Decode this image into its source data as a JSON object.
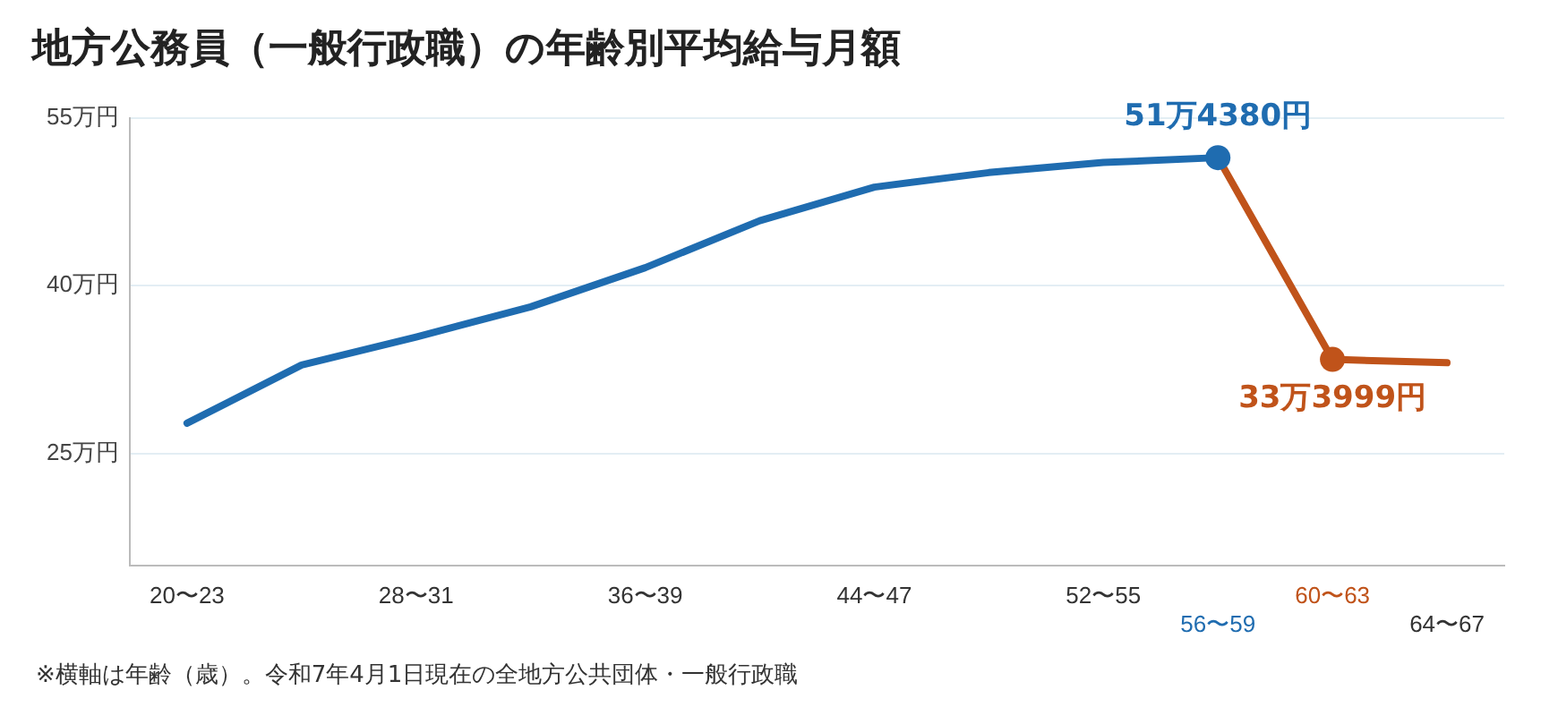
{
  "chart_data": {
    "type": "line",
    "title": "地方公務員（一般行政職）の年齢別平均給与月額",
    "categories": [
      "20〜23",
      null,
      "28〜31",
      null,
      "36〜39",
      null,
      "44〜47",
      null,
      "52〜55",
      "56〜59",
      "60〜63",
      "64〜67"
    ],
    "series": [
      {
        "color": "#1f6cb0",
        "values": [
          27.7,
          32.9,
          35.4,
          38.1,
          41.6,
          45.8,
          48.8,
          50.1,
          51.0,
          51.438,
          null,
          null
        ]
      },
      {
        "color": "#c0531a",
        "values": [
          null,
          null,
          null,
          null,
          null,
          null,
          null,
          null,
          null,
          51.438,
          33.3999,
          33.1
        ]
      }
    ],
    "ylim": [
      15,
      55
    ],
    "yticks": [
      {
        "value": 25,
        "label": "25万円"
      },
      {
        "value": 40,
        "label": "40万円"
      },
      {
        "value": 55,
        "label": "55万円"
      }
    ],
    "grid": "y",
    "legend": false,
    "line_style": "solid",
    "annotations": [
      {
        "text": "51万4380円",
        "x": "56〜59",
        "y": 51.438
      },
      {
        "text": "33万3999円",
        "x": "60〜63",
        "y": 33.3999
      },
      "※横軸は年齢（歳）。令和7年4月1日現在の全地方公共団体・一般行政職"
    ]
  }
}
